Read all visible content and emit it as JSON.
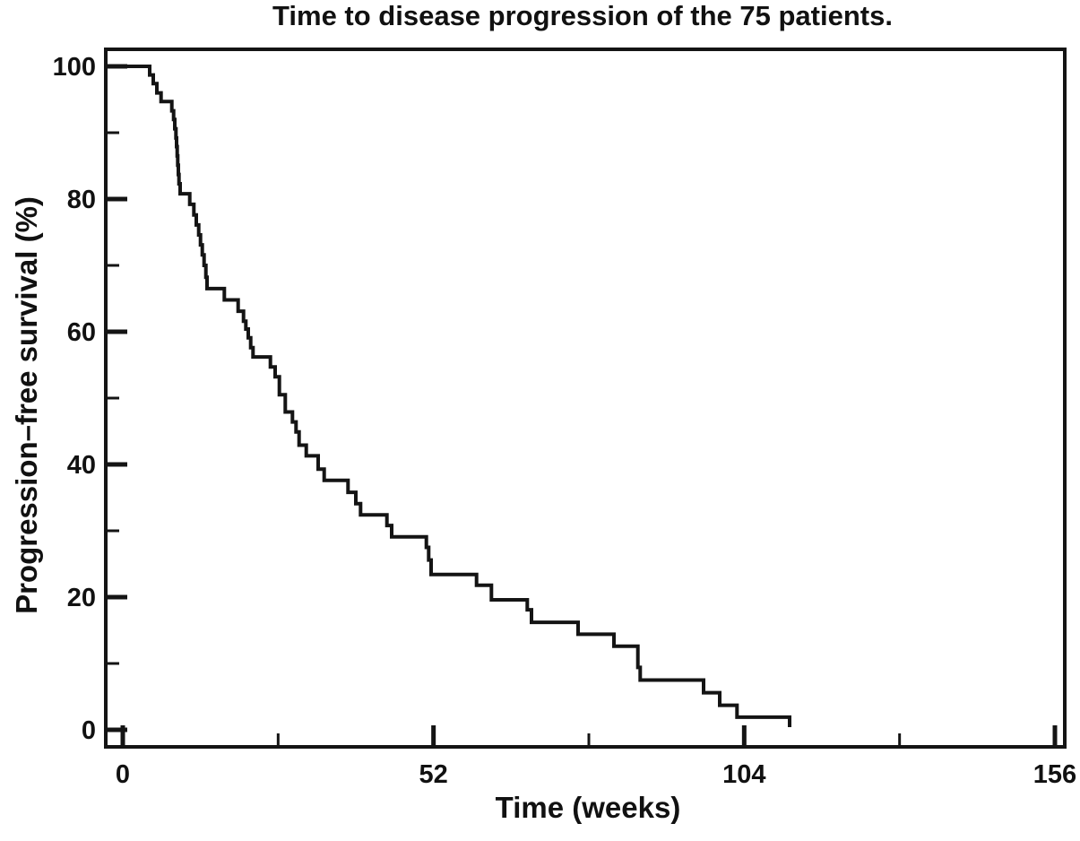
{
  "figure": {
    "title": "Time to disease progression of the 75 patients.",
    "x_axis_label": "Time (weeks)",
    "y_axis_label": "Progression–free survival (%)"
  },
  "chart_data": {
    "type": "line",
    "subtype": "kaplan_meier_step_curve",
    "title": "Time to disease progression of the 75 patients.",
    "xlabel": "Time (weeks)",
    "ylabel": "Progression–free survival (%)",
    "cohort_size": 75,
    "xlim": [
      0,
      156
    ],
    "ylim": [
      0,
      100
    ],
    "x_major_ticks": [
      0,
      52,
      104,
      156
    ],
    "x_minor_ticks": [
      26,
      78,
      130
    ],
    "y_major_ticks": [
      0,
      20,
      40,
      60,
      80,
      100
    ],
    "y_minor_ticks": [
      10,
      30,
      50,
      70,
      90
    ],
    "grid": false,
    "legend_position": "none",
    "tick_direction": "in",
    "line_color": "#141414",
    "axis_color": "#141414",
    "background_color": "#ffffff",
    "series": [
      {
        "name": "Progression-free survival",
        "step_points_week_percent": [
          [
            0,
            100
          ],
          [
            4.5,
            98.7
          ],
          [
            5.1,
            97.4
          ],
          [
            5.7,
            96.0
          ],
          [
            6.4,
            94.7
          ],
          [
            8.2,
            93.3
          ],
          [
            8.5,
            92.0
          ],
          [
            8.7,
            90.6
          ],
          [
            8.9,
            89.2
          ],
          [
            9.0,
            87.9
          ],
          [
            9.1,
            86.5
          ],
          [
            9.2,
            85.1
          ],
          [
            9.3,
            83.7
          ],
          [
            9.4,
            82.3
          ],
          [
            9.6,
            80.8
          ],
          [
            11.2,
            79.2
          ],
          [
            11.9,
            77.6
          ],
          [
            12.3,
            76.1
          ],
          [
            12.7,
            74.6
          ],
          [
            13.0,
            73.1
          ],
          [
            13.3,
            71.6
          ],
          [
            13.6,
            70.0
          ],
          [
            13.9,
            68.2
          ],
          [
            14.1,
            66.5
          ],
          [
            17.0,
            64.8
          ],
          [
            19.3,
            63.1
          ],
          [
            20.2,
            61.6
          ],
          [
            20.6,
            60.4
          ],
          [
            21.0,
            59.1
          ],
          [
            21.4,
            57.6
          ],
          [
            21.8,
            56.2
          ],
          [
            24.7,
            54.7
          ],
          [
            25.5,
            53.2
          ],
          [
            26.2,
            50.5
          ],
          [
            27.2,
            47.9
          ],
          [
            28.4,
            46.4
          ],
          [
            29.0,
            44.9
          ],
          [
            29.5,
            42.9
          ],
          [
            30.7,
            41.3
          ],
          [
            32.7,
            39.3
          ],
          [
            33.7,
            37.6
          ],
          [
            37.7,
            35.8
          ],
          [
            39.0,
            34.1
          ],
          [
            39.8,
            32.4
          ],
          [
            44.2,
            30.8
          ],
          [
            45.0,
            29.1
          ],
          [
            50.8,
            27.5
          ],
          [
            51.2,
            25.6
          ],
          [
            51.6,
            23.4
          ],
          [
            59.2,
            21.8
          ],
          [
            61.7,
            19.6
          ],
          [
            67.7,
            18.1
          ],
          [
            68.4,
            16.2
          ],
          [
            76.2,
            14.4
          ],
          [
            82.2,
            12.6
          ],
          [
            86.2,
            9.4
          ],
          [
            86.6,
            7.5
          ],
          [
            97.2,
            5.6
          ],
          [
            99.9,
            3.7
          ],
          [
            102.8,
            1.9
          ],
          [
            111.6,
            0.4
          ]
        ]
      }
    ]
  }
}
